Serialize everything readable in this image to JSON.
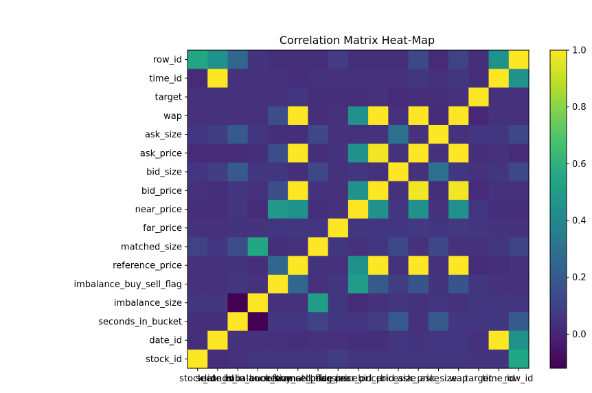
{
  "chart_data": {
    "type": "heatmap",
    "title": "Correlation Matrix Heat-Map",
    "xlabel": "",
    "ylabel": "",
    "labels": [
      "stock_id",
      "date_id",
      "seconds_in_bucket",
      "imbalance_size",
      "imbalance_buy_sell_flag",
      "reference_price",
      "matched_size",
      "far_price",
      "near_price",
      "bid_price",
      "bid_size",
      "ask_price",
      "ask_size",
      "wap",
      "target",
      "time_id",
      "row_id"
    ],
    "row_labels_top_to_bottom": [
      "row_id",
      "time_id",
      "target",
      "wap",
      "ask_size",
      "ask_price",
      "bid_size",
      "bid_price",
      "near_price",
      "far_price",
      "matched_size",
      "reference_price",
      "imbalance_buy_sell_flag",
      "imbalance_size",
      "seconds_in_bucket",
      "date_id",
      "stock_id"
    ],
    "colorbar": {
      "min": -0.12,
      "max": 1.0,
      "ticks": [
        0.0,
        0.2,
        0.4,
        0.6,
        0.8,
        1.0
      ],
      "tick_labels": [
        "0.0",
        "0.2",
        "0.4",
        "0.6",
        "0.8",
        "1.0"
      ],
      "colormap": "viridis"
    },
    "grid": false,
    "matrix_rows_top_to_bottom": [
      [
        0.55,
        0.45,
        0.25,
        0.05,
        0.03,
        0.03,
        0.03,
        0.08,
        0.03,
        0.03,
        0.03,
        0.12,
        0.02,
        0.1,
        0.03,
        0.45,
        1.0
      ],
      [
        0.02,
        1.0,
        0.04,
        0.04,
        0.04,
        0.03,
        0.04,
        0.04,
        0.04,
        0.04,
        0.04,
        0.06,
        0.04,
        0.06,
        0.03,
        1.0,
        0.45
      ],
      [
        0.04,
        0.04,
        0.04,
        0.04,
        0.04,
        0.06,
        0.03,
        0.03,
        0.03,
        0.04,
        0.02,
        0.03,
        0.03,
        0.04,
        1.0,
        0.04,
        0.04
      ],
      [
        0.04,
        0.04,
        0.04,
        0.04,
        0.15,
        1.0,
        0.03,
        0.04,
        0.45,
        1.0,
        0.04,
        1.0,
        0.02,
        1.0,
        0.01,
        0.04,
        0.04
      ],
      [
        0.06,
        0.08,
        0.2,
        0.06,
        0.03,
        0.03,
        0.12,
        0.04,
        0.04,
        0.04,
        0.3,
        0.04,
        1.0,
        0.04,
        0.06,
        0.06,
        0.12
      ],
      [
        0.02,
        0.02,
        0.02,
        0.03,
        0.15,
        1.0,
        0.03,
        0.05,
        0.45,
        0.98,
        0.04,
        1.0,
        0.04,
        1.0,
        0.03,
        0.04,
        0.02
      ],
      [
        0.06,
        0.08,
        0.2,
        0.06,
        0.06,
        0.03,
        0.12,
        0.04,
        0.06,
        0.04,
        1.0,
        0.04,
        0.3,
        0.06,
        0.04,
        0.06,
        0.12
      ],
      [
        0.04,
        0.03,
        0.06,
        0.04,
        0.15,
        1.0,
        0.05,
        0.04,
        0.45,
        1.0,
        0.04,
        0.98,
        0.03,
        0.98,
        0.02,
        0.04,
        0.04
      ],
      [
        0.03,
        0.03,
        0.06,
        0.02,
        0.48,
        0.45,
        0.03,
        0.04,
        1.0,
        0.45,
        0.06,
        0.45,
        0.04,
        0.45,
        0.06,
        0.03,
        0.03
      ],
      [
        0.04,
        0.04,
        0.05,
        0.05,
        0.06,
        0.06,
        0.06,
        1.0,
        0.06,
        0.06,
        0.06,
        0.07,
        0.06,
        0.07,
        0.06,
        0.05,
        0.04
      ],
      [
        0.1,
        0.06,
        0.15,
        0.55,
        0.03,
        0.04,
        1.0,
        0.06,
        0.04,
        0.06,
        0.12,
        0.04,
        0.12,
        0.04,
        0.04,
        0.06,
        0.1
      ],
      [
        0.04,
        0.04,
        0.05,
        0.03,
        0.25,
        1.0,
        0.05,
        0.04,
        0.45,
        1.0,
        0.04,
        1.0,
        0.04,
        1.0,
        0.02,
        0.03,
        0.04
      ],
      [
        0.04,
        0.04,
        0.06,
        0.04,
        1.0,
        0.25,
        0.04,
        0.06,
        0.5,
        0.2,
        0.08,
        0.18,
        0.05,
        0.18,
        0.06,
        0.04,
        0.04
      ],
      [
        0.06,
        0.06,
        -0.12,
        1.0,
        0.04,
        0.04,
        0.5,
        0.06,
        0.02,
        0.04,
        0.06,
        0.04,
        0.06,
        0.04,
        0.06,
        0.06,
        0.06
      ],
      [
        0.03,
        0.03,
        1.0,
        -0.12,
        0.06,
        0.06,
        0.1,
        0.06,
        0.06,
        0.08,
        0.2,
        0.04,
        0.2,
        0.06,
        0.06,
        0.06,
        0.2
      ],
      [
        0.03,
        1.0,
        0.04,
        0.04,
        0.04,
        0.03,
        0.04,
        0.04,
        0.03,
        0.03,
        0.06,
        0.05,
        0.06,
        0.06,
        0.04,
        1.0,
        0.45
      ],
      [
        1.0,
        0.03,
        0.04,
        0.06,
        0.06,
        0.06,
        0.06,
        0.08,
        0.06,
        0.06,
        0.06,
        0.06,
        0.06,
        0.06,
        0.05,
        0.05,
        0.55
      ]
    ]
  }
}
